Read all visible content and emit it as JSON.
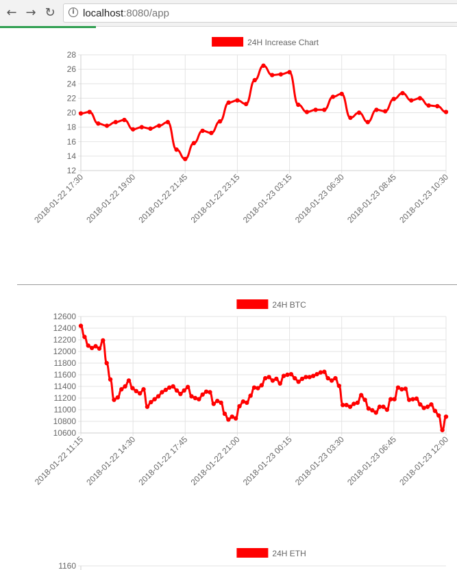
{
  "browser": {
    "url_host": "localhost",
    "url_path": ":8080/app",
    "progress_fraction": 0.21
  },
  "chart_data": [
    {
      "type": "line",
      "title": "",
      "legend": [
        "24H Increase Chart"
      ],
      "legend_position": "top",
      "color": "#ff0000",
      "ylim": [
        12,
        28
      ],
      "yticks": [
        12,
        14,
        16,
        18,
        20,
        22,
        24,
        26,
        28
      ],
      "xticks": [
        "2018-01-22 17:30",
        "2018-01-22 19:00",
        "2018-01-22 21:45",
        "2018-01-22 23:15",
        "2018-01-23 03:15",
        "2018-01-23 06:30",
        "2018-01-23 08:45",
        "2018-01-23 10:30"
      ],
      "grid": true,
      "series": [
        {
          "name": "24H Increase Chart",
          "values": [
            19.9,
            20.1,
            18.5,
            18.2,
            18.7,
            19.0,
            17.7,
            18.0,
            17.8,
            18.2,
            18.7,
            14.9,
            13.6,
            15.8,
            17.5,
            17.2,
            18.8,
            21.4,
            21.7,
            21.2,
            24.5,
            26.5,
            25.2,
            25.3,
            25.6,
            21.1,
            20.1,
            20.4,
            20.4,
            22.2,
            22.6,
            19.3,
            20.0,
            18.7,
            20.4,
            20.2,
            21.9,
            22.7,
            21.7,
            22.0,
            21.0,
            20.9,
            20.1
          ]
        }
      ]
    },
    {
      "type": "line",
      "title": "",
      "legend": [
        "24H BTC"
      ],
      "legend_position": "top",
      "color": "#ff0000",
      "ylim": [
        10600,
        12600
      ],
      "yticks": [
        10600,
        10800,
        11000,
        11200,
        11400,
        11600,
        11800,
        12000,
        12200,
        12400,
        12600
      ],
      "xticks": [
        "2018-01-22 11:15",
        "2018-01-22 14:30",
        "2018-01-22 17:45",
        "2018-01-22 21:00",
        "2018-01-23 00:15",
        "2018-01-23 03:30",
        "2018-01-23 06:45",
        "2018-01-23 12:00"
      ],
      "grid": true,
      "series": [
        {
          "name": "24H BTC",
          "values": [
            12440,
            12250,
            12100,
            12060,
            12090,
            12050,
            12190,
            11800,
            11520,
            11170,
            11210,
            11350,
            11400,
            11500,
            11370,
            11320,
            11280,
            11350,
            11050,
            11130,
            11180,
            11230,
            11300,
            11340,
            11380,
            11400,
            11330,
            11270,
            11330,
            11390,
            11230,
            11200,
            11180,
            11260,
            11310,
            11300,
            11100,
            11150,
            11120,
            10930,
            10830,
            10880,
            10850,
            11060,
            11140,
            11120,
            11240,
            11380,
            11370,
            11420,
            11540,
            11560,
            11500,
            11530,
            11450,
            11580,
            11600,
            11610,
            11540,
            11480,
            11530,
            11560,
            11560,
            11580,
            11610,
            11640,
            11650,
            11540,
            11500,
            11540,
            11410,
            11080,
            11080,
            11050,
            11100,
            11120,
            11250,
            11170,
            11020,
            10990,
            10950,
            11050,
            11050,
            11000,
            11180,
            11180,
            11380,
            11350,
            11360,
            11170,
            11180,
            11190,
            11090,
            11030,
            11050,
            11090,
            10980,
            10900,
            10650,
            10880
          ]
        }
      ]
    },
    {
      "type": "line",
      "title": "",
      "legend": [
        "24H ETH"
      ],
      "legend_position": "top",
      "color": "#ff0000",
      "yticks": [
        1160
      ],
      "grid": true,
      "series": [
        {
          "name": "24H ETH",
          "values": []
        }
      ]
    }
  ]
}
